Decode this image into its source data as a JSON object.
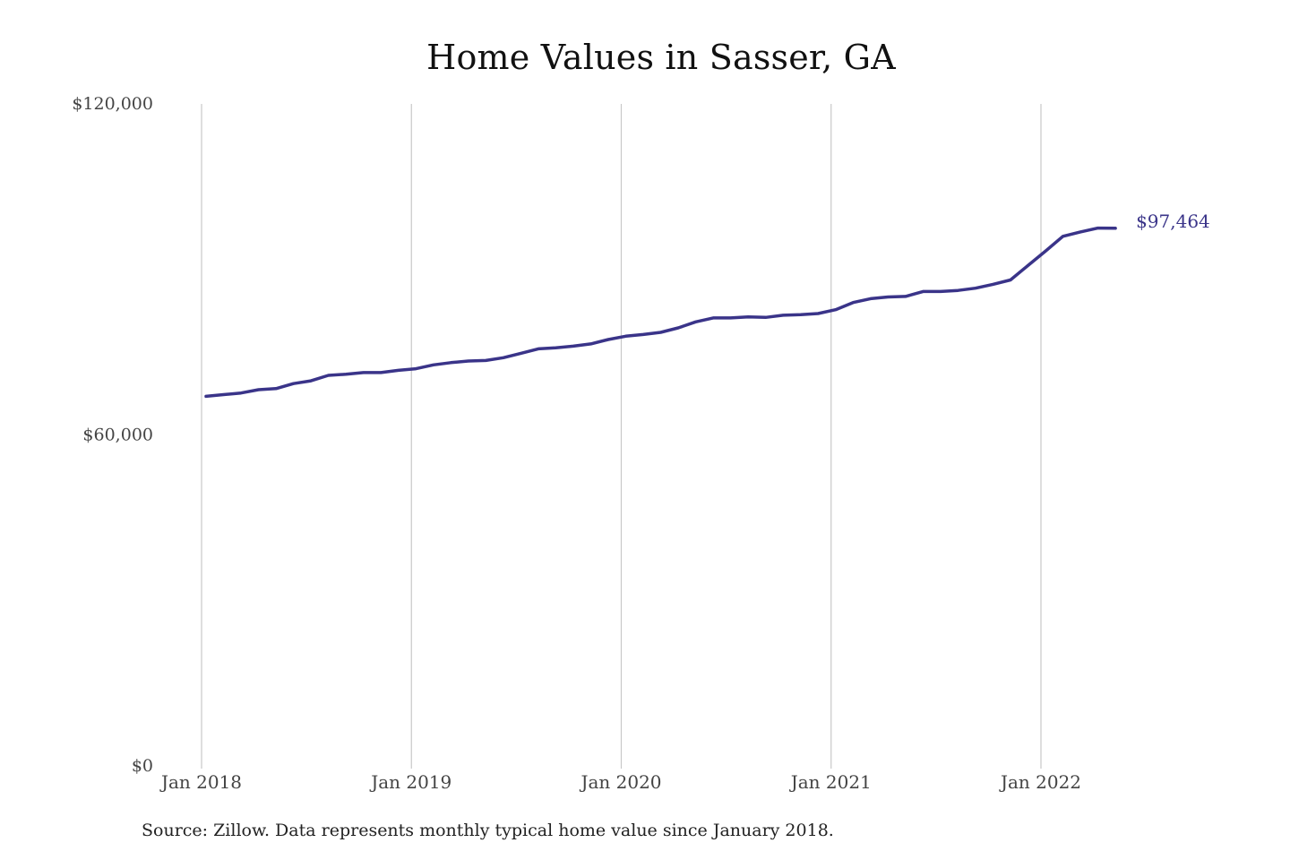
{
  "chart_data": {
    "type": "line",
    "title": "Home Values in Sasser, GA",
    "source": "Source: Zillow. Data represents monthly typical home value since January 2018.",
    "xlabel": "",
    "ylabel": "",
    "ylim": [
      0,
      120000
    ],
    "y_ticks": [
      {
        "value": 120000,
        "label": "$120,000"
      },
      {
        "value": 60000,
        "label": "$60,000"
      },
      {
        "value": 0,
        "label": "$0"
      }
    ],
    "x_ticks": [
      {
        "value": "2018-01",
        "label": "Jan 2018"
      },
      {
        "value": "2019-01",
        "label": "Jan 2019"
      },
      {
        "value": "2020-01",
        "label": "Jan 2020"
      },
      {
        "value": "2021-01",
        "label": "Jan 2021"
      },
      {
        "value": "2022-01",
        "label": "Jan 2022"
      }
    ],
    "grid": {
      "vertical": true,
      "horizontal": false
    },
    "legend": "none",
    "end_label": "$97,464",
    "colors": {
      "line": "#3a3489",
      "grid": "#c8c8c8"
    },
    "series": [
      {
        "x": [
          "2018-01",
          "2018-02",
          "2018-03",
          "2018-04",
          "2018-05",
          "2018-06",
          "2018-07",
          "2018-08",
          "2018-09",
          "2018-10",
          "2018-11",
          "2018-12",
          "2019-01",
          "2019-02",
          "2019-03",
          "2019-04",
          "2019-05",
          "2019-06",
          "2019-07",
          "2019-08",
          "2019-09",
          "2019-10",
          "2019-11",
          "2019-12",
          "2020-01",
          "2020-02",
          "2020-03",
          "2020-04",
          "2020-05",
          "2020-06",
          "2020-07",
          "2020-08",
          "2020-09",
          "2020-10",
          "2020-11",
          "2020-12",
          "2021-01",
          "2021-02",
          "2021-03",
          "2021-04",
          "2021-05",
          "2021-06",
          "2021-07",
          "2021-08",
          "2021-09",
          "2021-10",
          "2021-11",
          "2021-12",
          "2022-01",
          "2022-02",
          "2022-03",
          "2022-04",
          "2022-05"
        ],
        "values": [
          67000,
          67300,
          67600,
          68200,
          68400,
          69300,
          69800,
          70800,
          71000,
          71300,
          71300,
          71700,
          72000,
          72700,
          73100,
          73400,
          73500,
          74000,
          74800,
          75600,
          75800,
          76100,
          76500,
          77300,
          77900,
          78200,
          78600,
          79400,
          80500,
          81200,
          81200,
          81400,
          81300,
          81700,
          81800,
          82000,
          82700,
          84000,
          84700,
          85000,
          85100,
          86000,
          86000,
          86200,
          86600,
          87300,
          88100,
          90700,
          93300,
          96000,
          96800,
          97500,
          97464
        ]
      }
    ]
  }
}
